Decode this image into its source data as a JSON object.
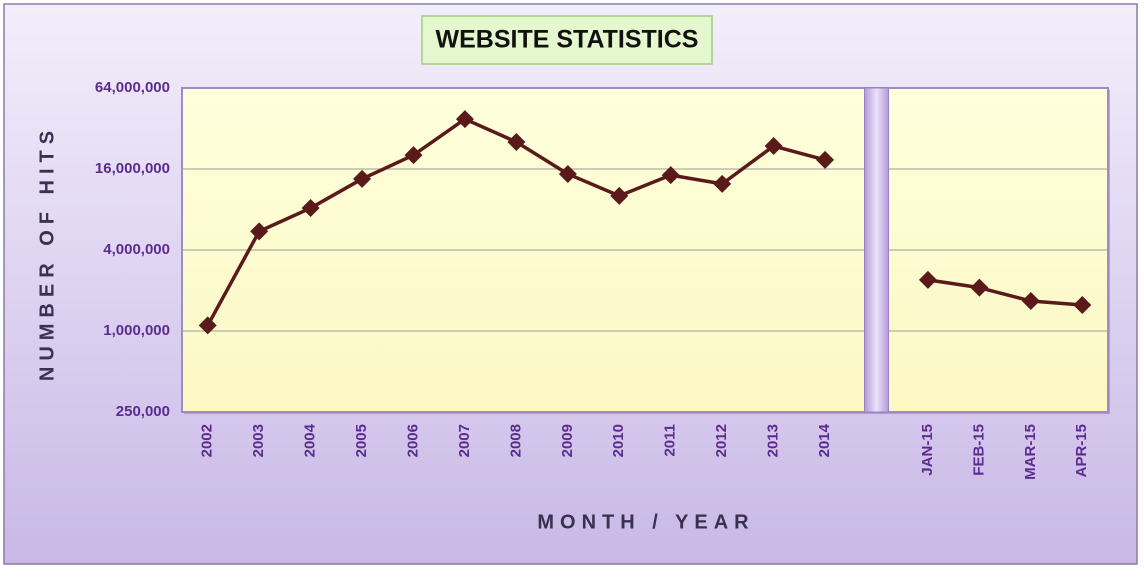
{
  "chart_data": {
    "type": "line",
    "title": "WEBSITE STATISTICS",
    "x_label": "MONTH / YEAR",
    "y_label": "NUMBER OF HITS",
    "categories": [
      "2002",
      "2003",
      "2004",
      "2005",
      "2006",
      "2007",
      "2008",
      "2009",
      "2010",
      "2011",
      "2012",
      "2013",
      "2014",
      null,
      "JAN-15",
      "FEB-15",
      "MAR-15",
      "APR-15"
    ],
    "values": [
      1100000,
      5500000,
      8200000,
      13500000,
      20300000,
      37600000,
      25400000,
      14700000,
      10100000,
      14400000,
      12400000,
      23700000,
      18700000,
      null,
      2400000,
      2100000,
      1670000,
      1560000
    ],
    "color": "#5a1a1a",
    "log_scale": true,
    "ylim": [
      250000,
      64000000
    ],
    "yticks": [
      {
        "value": 250000,
        "label": "250,000"
      },
      {
        "value": 1000000,
        "label": "1,000,000"
      },
      {
        "value": 4000000,
        "label": "4,000,000"
      },
      {
        "value": 16000000,
        "label": "16,000,000"
      },
      {
        "value": 64000000,
        "label": "64,000,000"
      }
    ],
    "grid": true
  }
}
